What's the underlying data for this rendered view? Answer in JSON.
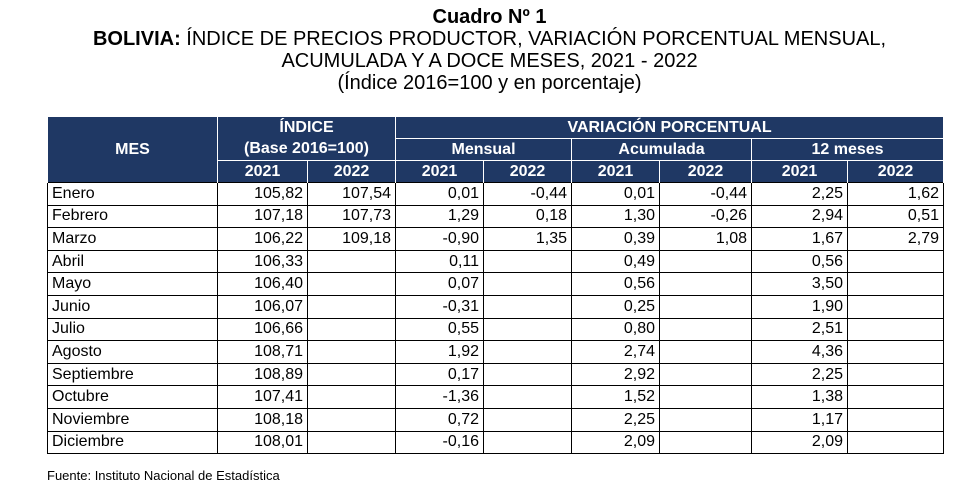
{
  "title": {
    "line1": "Cuadro Nº 1",
    "line2_bold": "BOLIVIA:",
    "line2_rest": " ÍNDICE DE PRECIOS PRODUCTOR, VARIACIÓN PORCENTUAL MENSUAL,",
    "line3": "ACUMULADA Y A DOCE MESES, 2021 - 2022",
    "line4": "(Índice 2016=100 y en porcentaje)"
  },
  "header": {
    "mes": "MES",
    "indice": "ÍNDICE",
    "indice_base": "(Base 2016=100)",
    "variacion": "VARIACIÓN PORCENTUAL",
    "mensual": "Mensual",
    "acumulada": "Acumulada",
    "doce_meses": "12 meses",
    "y2021": "2021",
    "y2022": "2022"
  },
  "rows": [
    {
      "mes": "Enero",
      "i21": "105,82",
      "i22": "107,54",
      "m21": "0,01",
      "m22": "-0,44",
      "a21": "0,01",
      "a22": "-0,44",
      "d21": "2,25",
      "d22": "1,62"
    },
    {
      "mes": "Febrero",
      "i21": "107,18",
      "i22": "107,73",
      "m21": "1,29",
      "m22": "0,18",
      "a21": "1,30",
      "a22": "-0,26",
      "d21": "2,94",
      "d22": "0,51"
    },
    {
      "mes": "Marzo",
      "i21": "106,22",
      "i22": "109,18",
      "m21": "-0,90",
      "m22": "1,35",
      "a21": "0,39",
      "a22": "1,08",
      "d21": "1,67",
      "d22": "2,79"
    },
    {
      "mes": "Abril",
      "i21": "106,33",
      "i22": "",
      "m21": "0,11",
      "m22": "",
      "a21": "0,49",
      "a22": "",
      "d21": "0,56",
      "d22": ""
    },
    {
      "mes": "Mayo",
      "i21": "106,40",
      "i22": "",
      "m21": "0,07",
      "m22": "",
      "a21": "0,56",
      "a22": "",
      "d21": "3,50",
      "d22": ""
    },
    {
      "mes": "Junio",
      "i21": "106,07",
      "i22": "",
      "m21": "-0,31",
      "m22": "",
      "a21": "0,25",
      "a22": "",
      "d21": "1,90",
      "d22": ""
    },
    {
      "mes": "Julio",
      "i21": "106,66",
      "i22": "",
      "m21": "0,55",
      "m22": "",
      "a21": "0,80",
      "a22": "",
      "d21": "2,51",
      "d22": ""
    },
    {
      "mes": "Agosto",
      "i21": "108,71",
      "i22": "",
      "m21": "1,92",
      "m22": "",
      "a21": "2,74",
      "a22": "",
      "d21": "4,36",
      "d22": ""
    },
    {
      "mes": "Septiembre",
      "i21": "108,89",
      "i22": "",
      "m21": "0,17",
      "m22": "",
      "a21": "2,92",
      "a22": "",
      "d21": "2,25",
      "d22": ""
    },
    {
      "mes": "Octubre",
      "i21": "107,41",
      "i22": "",
      "m21": "-1,36",
      "m22": "",
      "a21": "1,52",
      "a22": "",
      "d21": "1,38",
      "d22": ""
    },
    {
      "mes": "Noviembre",
      "i21": "108,18",
      "i22": "",
      "m21": "0,72",
      "m22": "",
      "a21": "2,25",
      "a22": "",
      "d21": "1,17",
      "d22": ""
    },
    {
      "mes": "Diciembre",
      "i21": "108,01",
      "i22": "",
      "m21": "-0,16",
      "m22": "",
      "a21": "2,09",
      "a22": "",
      "d21": "2,09",
      "d22": ""
    }
  ],
  "source": "Fuente: Instituto Nacional de Estadística"
}
